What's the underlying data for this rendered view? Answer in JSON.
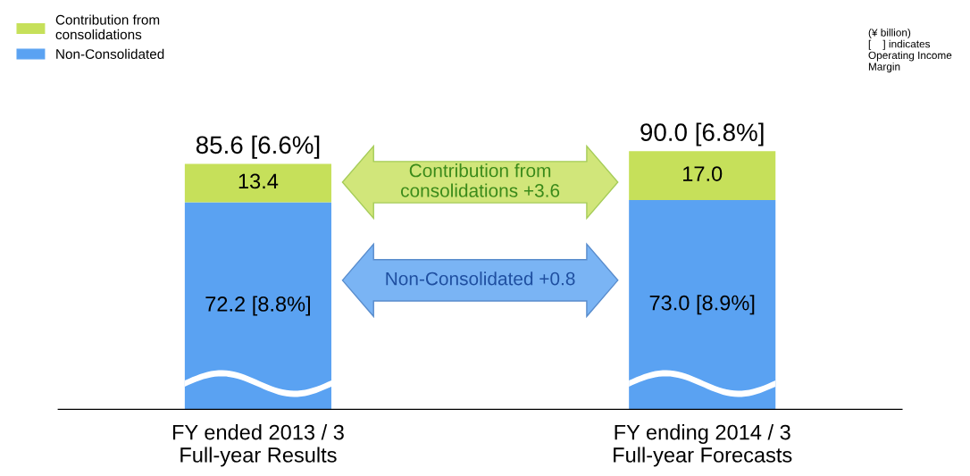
{
  "chart_data": {
    "type": "bar",
    "stacked": true,
    "categories": [
      "FY ended 2013 / 3\nFull-year Results",
      "FY ending 2014 / 3\nFull-year Forecasts"
    ],
    "series": [
      {
        "name": "Non-Consolidated",
        "color": "#5aa2f2",
        "values": [
          72.2,
          73.0
        ],
        "value_labels": [
          "72.2 [8.8%]",
          "73.0 [8.9%]"
        ]
      },
      {
        "name": "Contribution from\nconsolidations",
        "color": "#c6e05a",
        "values": [
          13.4,
          17.0
        ],
        "value_labels": [
          "13.4",
          "17.0"
        ]
      }
    ],
    "totals": [
      "85.6 [6.6%]",
      "90.0 [6.8%]"
    ],
    "annotations": [
      "Contribution from\nconsolidations +3.6",
      "Non-Consolidated +0.8",
      "(¥ billion)\n[    ] indicates\nOperating Income\nMargin"
    ],
    "legend": "top left",
    "tick_labels": "x"
  }
}
